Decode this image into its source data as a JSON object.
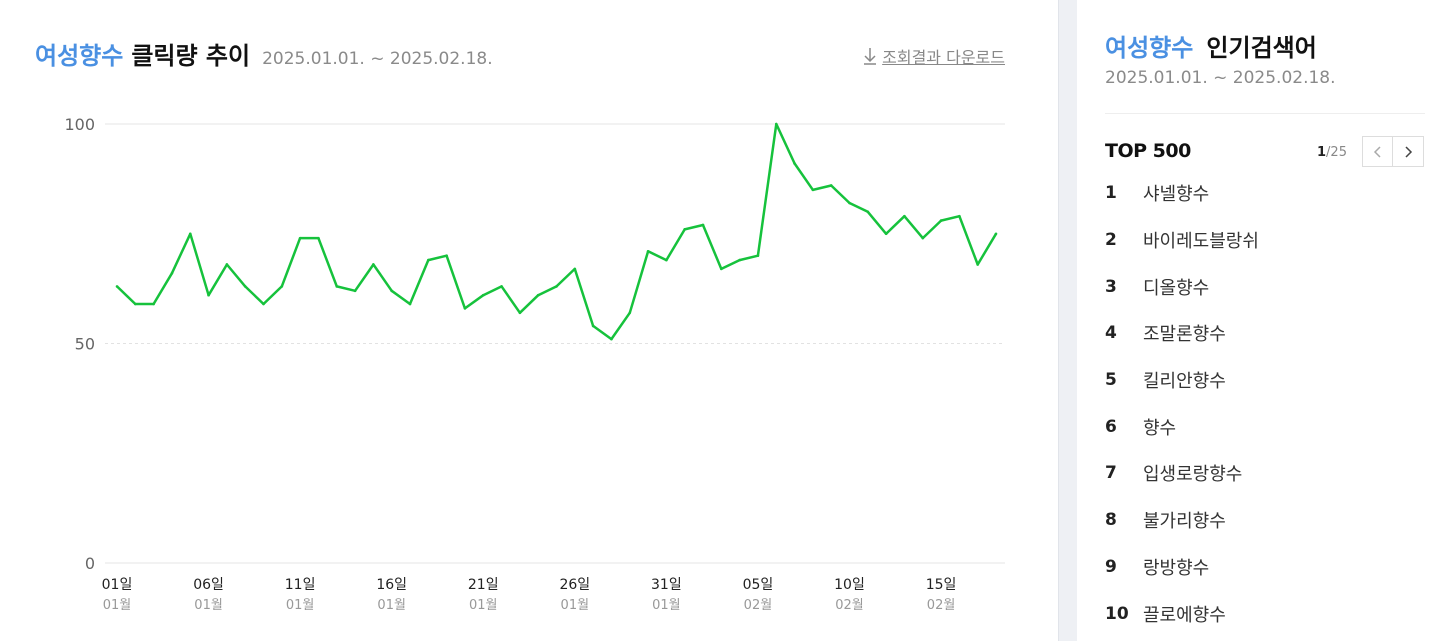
{
  "chart_panel": {
    "title_keyword": "여성향수",
    "title_rest": "클릭량 추이",
    "date_range": "2025.01.01. ~ 2025.02.18.",
    "download_label": "조회결과 다운로드"
  },
  "chart_data": {
    "type": "line",
    "title": "여성향수 클릭량 추이",
    "ylim": [
      0,
      100
    ],
    "yticks": [
      "0",
      "50",
      "100"
    ],
    "grid": true,
    "x_tick_labels": [
      {
        "day": "01일",
        "month": "01월"
      },
      {
        "day": "06일",
        "month": "01월"
      },
      {
        "day": "11일",
        "month": "01월"
      },
      {
        "day": "16일",
        "month": "01월"
      },
      {
        "day": "21일",
        "month": "01월"
      },
      {
        "day": "26일",
        "month": "01월"
      },
      {
        "day": "31일",
        "month": "01월"
      },
      {
        "day": "05일",
        "month": "02월"
      },
      {
        "day": "10일",
        "month": "02월"
      },
      {
        "day": "15일",
        "month": "02월"
      }
    ],
    "series": [
      {
        "color": "#16c23c",
        "x": [
          "2025-01-01",
          "2025-01-02",
          "2025-01-03",
          "2025-01-04",
          "2025-01-05",
          "2025-01-06",
          "2025-01-07",
          "2025-01-08",
          "2025-01-09",
          "2025-01-10",
          "2025-01-11",
          "2025-01-12",
          "2025-01-13",
          "2025-01-14",
          "2025-01-15",
          "2025-01-16",
          "2025-01-17",
          "2025-01-18",
          "2025-01-19",
          "2025-01-20",
          "2025-01-21",
          "2025-01-22",
          "2025-01-23",
          "2025-01-24",
          "2025-01-25",
          "2025-01-26",
          "2025-01-27",
          "2025-01-28",
          "2025-01-29",
          "2025-01-30",
          "2025-01-31",
          "2025-02-01",
          "2025-02-02",
          "2025-02-03",
          "2025-02-04",
          "2025-02-05",
          "2025-02-06",
          "2025-02-07",
          "2025-02-08",
          "2025-02-09",
          "2025-02-10",
          "2025-02-11",
          "2025-02-12",
          "2025-02-13",
          "2025-02-14",
          "2025-02-15",
          "2025-02-16",
          "2025-02-17",
          "2025-02-18"
        ],
        "values": [
          63,
          59,
          59,
          66,
          75,
          61,
          68,
          63,
          59,
          63,
          74,
          74,
          63,
          62,
          68,
          62,
          59,
          69,
          70,
          58,
          61,
          63,
          57,
          61,
          63,
          67,
          54,
          51,
          57,
          71,
          69,
          76,
          77,
          67,
          69,
          70,
          100,
          91,
          85,
          86,
          82,
          80,
          75,
          79,
          74,
          78,
          79,
          68,
          75
        ]
      }
    ]
  },
  "sidebar": {
    "title_keyword": "여성향수",
    "title_rest": "인기검색어",
    "date_range": "2025.01.01. ~ 2025.02.18.",
    "top_label": "TOP 500",
    "page_current": "1",
    "page_total": "/25",
    "items": [
      {
        "rank": "1",
        "keyword": "샤넬향수"
      },
      {
        "rank": "2",
        "keyword": "바이레도블랑쉬"
      },
      {
        "rank": "3",
        "keyword": "디올향수"
      },
      {
        "rank": "4",
        "keyword": "조말론향수"
      },
      {
        "rank": "5",
        "keyword": "킬리안향수"
      },
      {
        "rank": "6",
        "keyword": "향수"
      },
      {
        "rank": "7",
        "keyword": "입생로랑향수"
      },
      {
        "rank": "8",
        "keyword": "불가리향수"
      },
      {
        "rank": "9",
        "keyword": "랑방향수"
      },
      {
        "rank": "10",
        "keyword": "끌로에향수"
      }
    ]
  },
  "colors": {
    "accent": "#4a90e2",
    "line": "#16c23c",
    "divider_bg": "#eef0f4"
  }
}
